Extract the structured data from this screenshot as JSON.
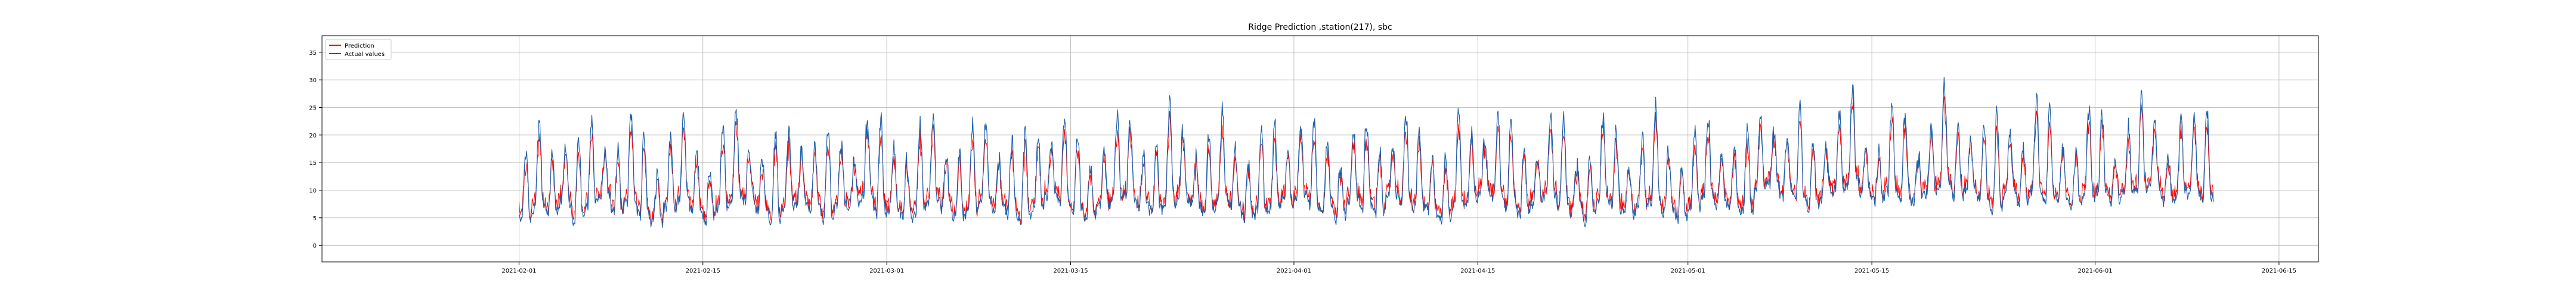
{
  "chart_data": {
    "type": "line",
    "title": "Ridge Prediction ,station(217), sbc",
    "xlabel": "",
    "ylabel": "",
    "x_start": "2021-02-01",
    "x_end": "2021-06-10",
    "xlim": [
      "2021-01-17",
      "2021-06-18"
    ],
    "ylim": [
      -3,
      38
    ],
    "grid": true,
    "legend_position": "top-left",
    "x_ticks": [
      "2021-02-01",
      "2021-02-15",
      "2021-03-01",
      "2021-03-15",
      "2021-04-01",
      "2021-04-15",
      "2021-05-01",
      "2021-05-15",
      "2021-06-01",
      "2021-06-15"
    ],
    "y_ticks": [
      0,
      5,
      10,
      15,
      20,
      25,
      30,
      35
    ],
    "sampling": "hourly",
    "series": [
      {
        "name": "Prediction",
        "color": "#ff0000",
        "values_daily_mean": [
          9,
          11,
          10,
          12,
          9,
          11,
          13,
          10,
          12,
          9,
          8,
          11,
          12,
          10,
          9,
          11,
          13,
          12,
          10,
          9,
          11,
          12,
          10,
          9,
          11,
          12,
          13,
          10,
          11,
          9,
          10,
          12,
          11,
          9,
          10,
          12,
          11,
          10,
          9,
          11,
          13,
          12,
          10,
          9,
          11,
          12,
          13,
          11,
          10,
          12,
          13,
          11,
          10,
          12,
          11,
          9,
          10,
          11,
          12,
          13,
          11,
          10,
          9,
          12,
          11,
          10,
          13,
          12,
          11,
          10,
          9,
          11,
          12,
          14,
          13,
          11,
          10,
          12,
          13,
          11,
          10,
          9,
          12,
          11,
          10,
          11,
          12,
          10,
          9,
          11,
          13,
          12,
          11,
          10,
          14,
          15,
          13,
          12,
          11,
          13,
          14,
          15,
          13,
          12,
          14,
          13,
          12,
          14,
          15,
          13,
          14,
          12,
          11,
          13,
          12,
          14,
          13,
          12,
          11,
          13,
          14,
          12,
          13,
          14,
          15,
          12,
          13
        ]
      },
      {
        "name": "Actual values",
        "color": "#1f5fa8",
        "values_daily_mean": [
          9,
          11,
          10,
          12,
          9,
          11,
          13,
          10,
          12,
          9,
          8,
          11,
          12,
          10,
          9,
          11,
          13,
          12,
          10,
          9,
          11,
          12,
          10,
          9,
          11,
          12,
          13,
          10,
          11,
          9,
          10,
          12,
          11,
          9,
          10,
          12,
          11,
          10,
          9,
          11,
          13,
          12,
          10,
          9,
          11,
          12,
          13,
          11,
          10,
          12,
          13,
          11,
          10,
          12,
          11,
          9,
          10,
          11,
          12,
          13,
          11,
          10,
          9,
          12,
          11,
          10,
          13,
          12,
          11,
          10,
          9,
          11,
          12,
          14,
          13,
          11,
          10,
          12,
          13,
          11,
          10,
          9,
          12,
          11,
          10,
          11,
          12,
          10,
          9,
          11,
          13,
          12,
          11,
          10,
          14,
          15,
          13,
          12,
          11,
          13,
          14,
          15,
          13,
          12,
          14,
          13,
          12,
          14,
          15,
          13,
          14,
          12,
          11,
          13,
          12,
          14,
          13,
          12,
          11,
          13,
          14,
          12,
          13,
          14,
          15,
          12,
          13
        ]
      }
    ]
  }
}
